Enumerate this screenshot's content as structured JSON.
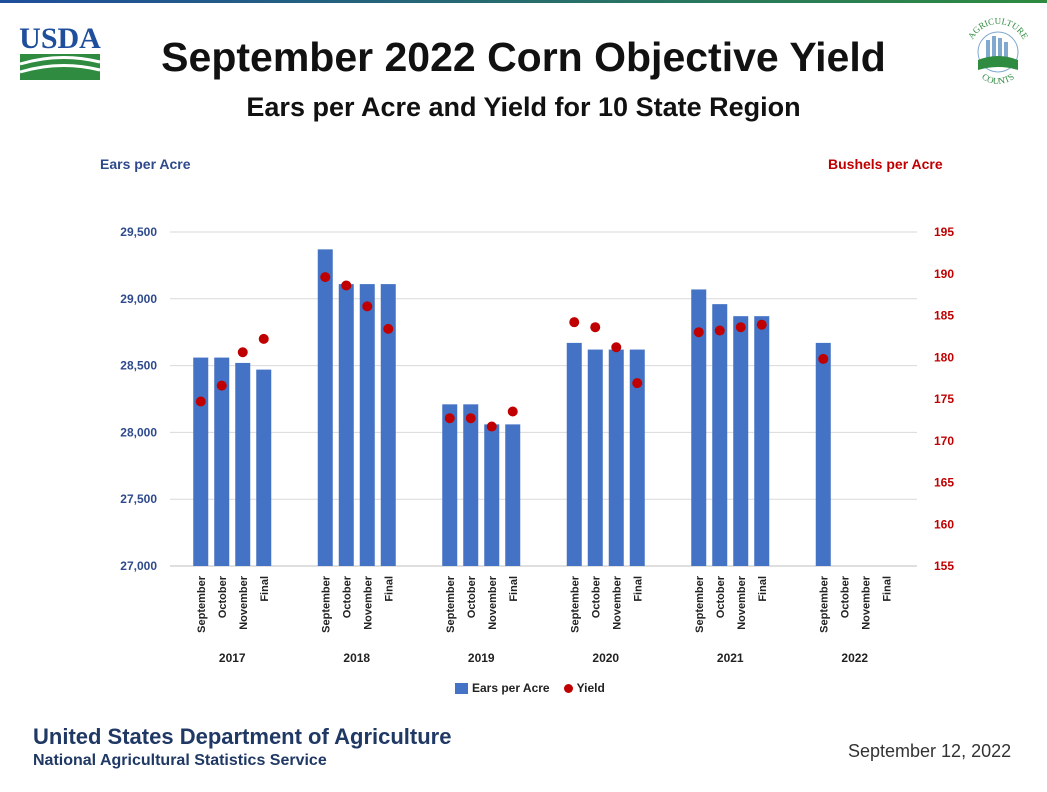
{
  "header": {
    "title": "September 2022 Corn Objective Yield",
    "subtitle": "Ears per Acre and Yield for 10 State Region",
    "usda_logo_text": "USDA",
    "ag_logo_text_top": "AGRICULTURE",
    "ag_logo_text_bottom": "COUNTS"
  },
  "footer": {
    "department": "United States Department of Agriculture",
    "agency": "National Agricultural Statistics Service",
    "date": "September 12, 2022"
  },
  "colors": {
    "bar": "#4472c4",
    "dot": "#c00000",
    "left_axis": "#2e4a8c",
    "right_axis": "#c00000",
    "grid": "#d9d9d9",
    "usda_blue": "#1f4e9c",
    "usda_green": "#2e8b3f"
  },
  "chart_data": {
    "type": "bar",
    "left_axis_title": "Ears per Acre",
    "right_axis_title": "Bushels per Acre",
    "ylim_left": [
      27000,
      29500
    ],
    "ylim_right": [
      155,
      195
    ],
    "left_ticks": [
      "27,000",
      "27,500",
      "28,000",
      "28,500",
      "29,000",
      "29,500"
    ],
    "right_ticks": [
      "155",
      "160",
      "165",
      "170",
      "175",
      "180",
      "185",
      "190",
      "195"
    ],
    "grid": true,
    "legend_position": "bottom",
    "legend": [
      "Ears per Acre",
      "Yield"
    ],
    "groups": [
      {
        "year": "2017",
        "months": [
          "September",
          "October",
          "November",
          "Final"
        ],
        "ears": [
          28560,
          28560,
          28520,
          28470
        ],
        "yield": [
          174.7,
          176.6,
          180.6,
          182.2
        ]
      },
      {
        "year": "2018",
        "months": [
          "September",
          "October",
          "November",
          "Final"
        ],
        "ears": [
          29370,
          29110,
          29110,
          29110
        ],
        "yield": [
          189.6,
          188.6,
          186.1,
          183.4
        ]
      },
      {
        "year": "2019",
        "months": [
          "September",
          "October",
          "November",
          "Final"
        ],
        "ears": [
          28210,
          28210,
          28060,
          28060
        ],
        "yield": [
          172.7,
          172.7,
          171.7,
          173.5
        ]
      },
      {
        "year": "2020",
        "months": [
          "September",
          "October",
          "November",
          "Final"
        ],
        "ears": [
          28670,
          28620,
          28620,
          28620
        ],
        "yield": [
          184.2,
          183.6,
          181.2,
          176.9
        ]
      },
      {
        "year": "2021",
        "months": [
          "September",
          "October",
          "November",
          "Final"
        ],
        "ears": [
          29070,
          28960,
          28870,
          28870
        ],
        "yield": [
          183.0,
          183.2,
          183.6,
          183.9
        ]
      },
      {
        "year": "2022",
        "months": [
          "September",
          "October",
          "November",
          "Final"
        ],
        "ears": [
          28670,
          null,
          null,
          null
        ],
        "yield": [
          179.8,
          null,
          null,
          null
        ]
      }
    ]
  }
}
